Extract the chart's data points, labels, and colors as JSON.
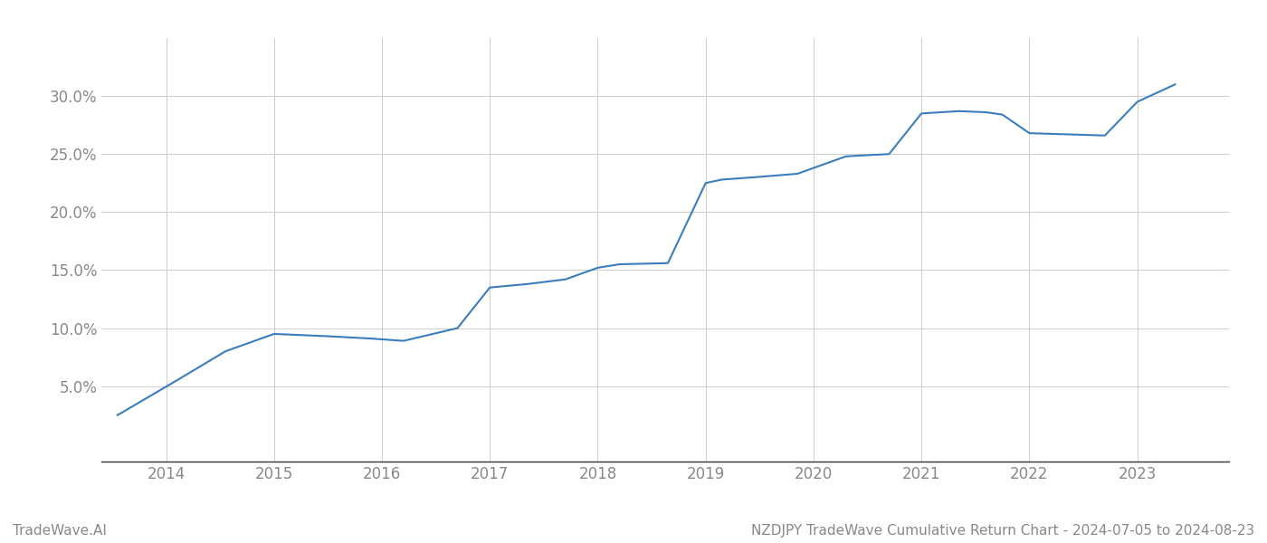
{
  "x_years": [
    2013.55,
    2014.1,
    2014.55,
    2015.0,
    2015.5,
    2015.9,
    2016.2,
    2016.7,
    2017.0,
    2017.35,
    2017.7,
    2018.0,
    2018.2,
    2018.65,
    2019.0,
    2019.15,
    2019.45,
    2019.85,
    2020.3,
    2020.7,
    2021.0,
    2021.35,
    2021.6,
    2021.75,
    2022.0,
    2022.35,
    2022.7,
    2023.0,
    2023.35
  ],
  "y_values": [
    2.5,
    5.5,
    8.0,
    9.5,
    9.3,
    9.1,
    8.9,
    10.0,
    13.5,
    13.8,
    14.2,
    15.2,
    15.5,
    15.6,
    22.5,
    22.8,
    23.0,
    23.3,
    24.8,
    25.0,
    28.5,
    28.7,
    28.6,
    28.4,
    26.8,
    26.7,
    26.6,
    29.5,
    31.0
  ],
  "line_color": "#3a7dbf",
  "line_width": 1.5,
  "background_color": "#ffffff",
  "grid_color": "#cccccc",
  "tick_color": "#888888",
  "xlim": [
    2013.4,
    2023.85
  ],
  "ylim": [
    -1.5,
    35
  ],
  "yticks": [
    5.0,
    10.0,
    15.0,
    20.0,
    25.0,
    30.0
  ],
  "xticks": [
    2014,
    2015,
    2016,
    2017,
    2018,
    2019,
    2020,
    2021,
    2022,
    2023
  ],
  "footer_left": "TradeWave.AI",
  "footer_right": "NZDJPY TradeWave Cumulative Return Chart - 2024-07-05 to 2024-08-23",
  "footer_color": "#888888",
  "footer_fontsize": 11,
  "tick_fontsize": 12,
  "spine_bottom_color": "#333333"
}
